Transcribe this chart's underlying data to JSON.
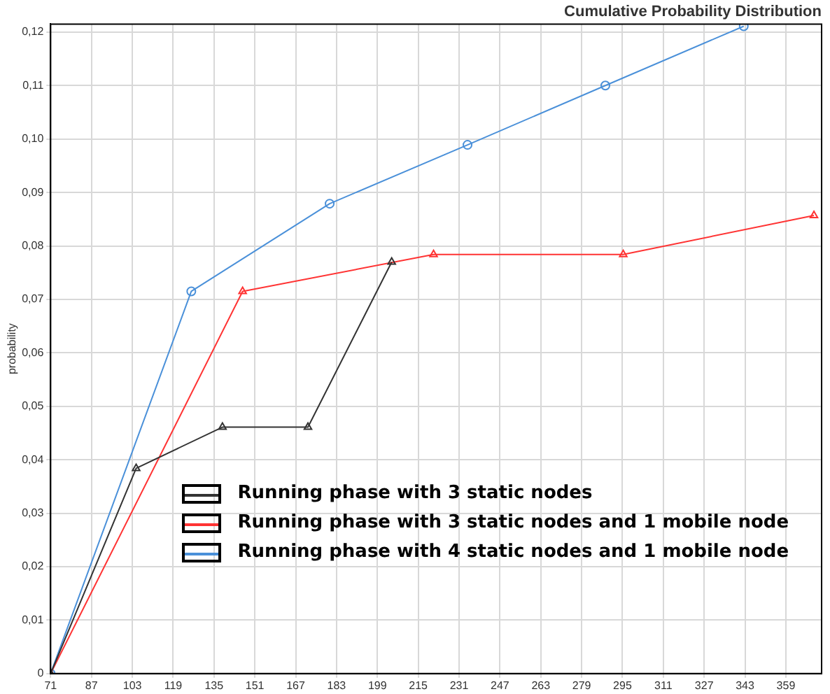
{
  "chart_data": {
    "type": "line",
    "title": "Cumulative Probability Distribution",
    "ylabel": "probability",
    "xlim": [
      71,
      373
    ],
    "xticks": [
      71,
      87,
      103,
      119,
      135,
      151,
      167,
      183,
      199,
      215,
      231,
      247,
      263,
      279,
      295,
      311,
      327,
      343,
      359
    ],
    "ylim": [
      0,
      0.1215
    ],
    "yticks": [
      {
        "value": 0,
        "label": "0"
      },
      {
        "value": 0.01,
        "label": "0,01"
      },
      {
        "value": 0.02,
        "label": "0,02"
      },
      {
        "value": 0.03,
        "label": "0,03"
      },
      {
        "value": 0.04,
        "label": "0,04"
      },
      {
        "value": 0.05,
        "label": "0,05"
      },
      {
        "value": 0.06,
        "label": "0,06"
      },
      {
        "value": 0.07,
        "label": "0,07"
      },
      {
        "value": 0.08,
        "label": "0,08"
      },
      {
        "value": 0.09,
        "label": "0,09"
      },
      {
        "value": 0.1,
        "label": "0,10"
      },
      {
        "value": 0.11,
        "label": "0,11"
      },
      {
        "value": 0.12,
        "label": "0,12"
      }
    ],
    "grid": true,
    "legend": "bottom",
    "line_style": "solid",
    "series": [
      {
        "name": "Running phase with 3 static nodes",
        "color": "#333333",
        "marker": "triangle",
        "x": [
          71,
          104.5,
          138.3,
          171.8,
          204.6
        ],
        "values": [
          0,
          0.0384,
          0.0461,
          0.0461,
          0.077
        ]
      },
      {
        "name": "Running phase with 3 static nodes and 1 mobile node",
        "color": "#ff3333",
        "marker": "triangle",
        "x": [
          71,
          146.2,
          221,
          295.3,
          370
        ],
        "values": [
          0,
          0.0715,
          0.0784,
          0.0784,
          0.0857
        ]
      },
      {
        "name": "Running phase with 4 static nodes and 1 mobile node",
        "color": "#4a90d9",
        "marker": "circle",
        "x": [
          71,
          126.1,
          180.3,
          234.3,
          288.3,
          342.5
        ],
        "values": [
          0,
          0.0715,
          0.0879,
          0.0989,
          0.11,
          0.1211
        ]
      }
    ]
  }
}
